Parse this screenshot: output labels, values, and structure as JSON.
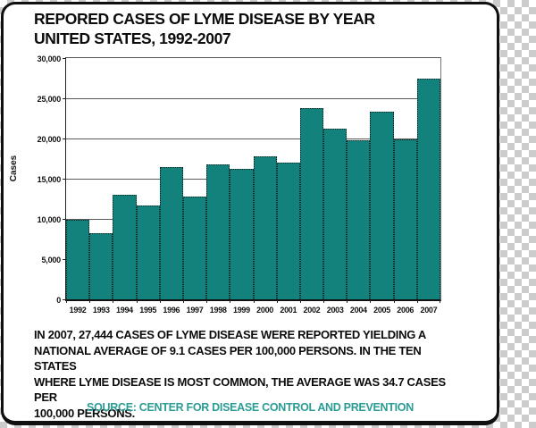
{
  "card": {
    "title_line1": "REPORED CASES OF LYME DISEASE BY YEAR",
    "title_line2": "UNITED STATES, 1992-2007",
    "body_lines": [
      "IN 2007, 27,444 CASES OF LYME DISEASE WERE REPORTED YIELDING A",
      "NATIONAL AVERAGE OF 9.1 CASES PER 100,000 PERSONS. IN THE TEN STATES",
      "WHERE LYME DISEASE IS MOST COMMON, THE AVERAGE WAS 34.7 CASES PER",
      "100,000 PERSONS."
    ],
    "source_text": "SOURCE: CENTER FOR DISEASE CONTROL AND PREVENTION"
  },
  "colors": {
    "bar_fill": "#14827C",
    "bar_border": "#00221f",
    "source_text": "#2a9c94",
    "card_border": "#101010",
    "checker_gray": "#cccccc"
  },
  "chart_data": {
    "type": "bar",
    "title": "",
    "xlabel": "",
    "ylabel": "Cases",
    "ylim": [
      0,
      30000
    ],
    "grid": true,
    "legend": "none",
    "ytick_values": [
      30000,
      25000,
      20000,
      15000,
      10000,
      5000,
      0
    ],
    "ytick_labels": [
      "30,000",
      "25,000",
      "20,000",
      "15,000",
      "10,000",
      "5,000",
      "0"
    ],
    "categories": [
      "1992",
      "1993",
      "1994",
      "1995",
      "1996",
      "1997",
      "1998",
      "1999",
      "2000",
      "2001",
      "2002",
      "2003",
      "2004",
      "2005",
      "2006",
      "2007"
    ],
    "values": [
      9908,
      8257,
      13043,
      11700,
      16455,
      12801,
      16801,
      16273,
      17730,
      17029,
      23763,
      21273,
      19804,
      23305,
      19931,
      27444
    ]
  }
}
